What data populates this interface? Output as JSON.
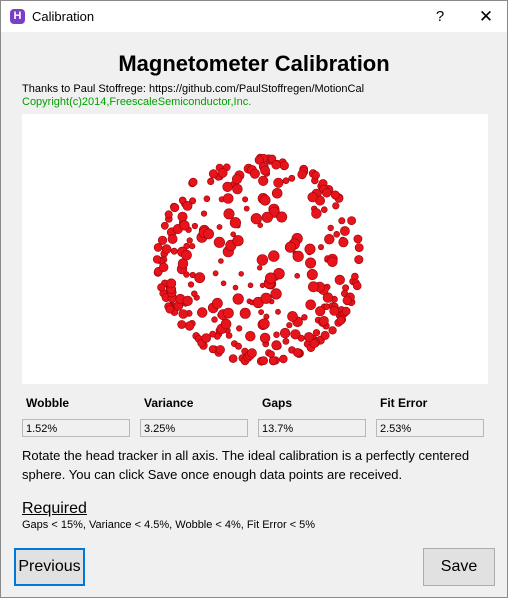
{
  "window": {
    "title": "Calibration",
    "help_label": "?",
    "close_label": "✕",
    "icon_letter": "H"
  },
  "heading": "Magnetometer Calibration",
  "thanks_text": "Thanks to Paul Stoffrege: https://github.com/PaulStoffregen/MotionCal",
  "copyright_text": "Copyright(c)2014,FreescaleSemiconductor,Inc.",
  "colors": {
    "point_color": "#e8141c",
    "copyright": "#00a000",
    "focus_border": "#0078d7"
  },
  "metrics": [
    {
      "label": "Wobble",
      "value": "1.52%"
    },
    {
      "label": "Variance",
      "value": "3.25%"
    },
    {
      "label": "Gaps",
      "value": "13.7%"
    },
    {
      "label": "Fit Error",
      "value": "2.53%"
    }
  ],
  "instructions": "Rotate the head tracker in all axis. The ideal calibration is a perfectly centered sphere. You can click Save once enough data points are received.",
  "required": {
    "heading": "Required",
    "text": "Gaps < 15%, Variance < 4.5%, Wobble < 4%, Fit Error < 5%"
  },
  "buttons": {
    "previous": "Previous",
    "save": "Save"
  }
}
